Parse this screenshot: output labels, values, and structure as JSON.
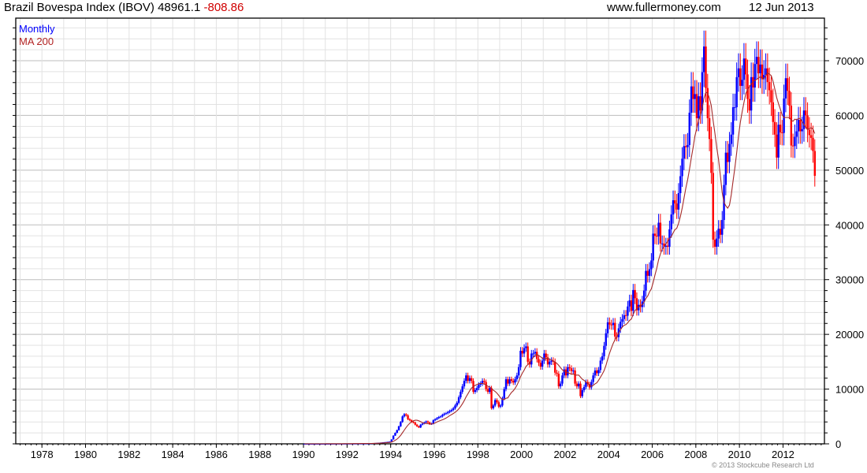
{
  "header": {
    "title": "Brazil Bovespa Index (IBOV) 48961.1",
    "change": "-808.86",
    "site": "www.fullermoney.com",
    "date": "12 Jun 2013"
  },
  "footer": {
    "copyright": "© 2013 Stockcube Research Ltd"
  },
  "colors": {
    "up": "#0000ff",
    "down": "#ff0000",
    "ma": "#a52a2a",
    "grid": "#e2e2e2",
    "grid_major": "#bdbdbd"
  },
  "chart_data": {
    "type": "bar",
    "subtype": "ohlc-monthly",
    "title": "Brazil Bovespa Index (IBOV)",
    "legend": [
      "Monthly",
      "MA 200"
    ],
    "legend_position": "top-left",
    "x_ticks": [
      "1978",
      "1980",
      "1982",
      "1984",
      "1986",
      "1988",
      "1990",
      "1992",
      "1994",
      "1996",
      "1998",
      "2000",
      "2002",
      "2004",
      "2006",
      "2008",
      "2010",
      "2012"
    ],
    "y_ticks": [
      "0",
      "10000",
      "20000",
      "30000",
      "40000",
      "50000",
      "60000",
      "70000"
    ],
    "xlim": [
      1976.8,
      2013.9
    ],
    "ylim": [
      0,
      70000
    ],
    "y_axis_side": "right",
    "grid": true,
    "start": "1990-01",
    "ma_period_months": 10,
    "closes": [
      5,
      5,
      5,
      6,
      6,
      6,
      7,
      7,
      7,
      8,
      8,
      9,
      10,
      12,
      15,
      18,
      20,
      22,
      25,
      28,
      30,
      32,
      35,
      40,
      42,
      45,
      50,
      55,
      60,
      60,
      65,
      70,
      70,
      75,
      80,
      90,
      100,
      110,
      130,
      150,
      170,
      200,
      230,
      260,
      300,
      330,
      370,
      420,
      800,
      1500,
      2000,
      2500,
      3200,
      4000,
      5000,
      5400,
      5200,
      4500,
      4300,
      4000,
      3900,
      3500,
      3200,
      3000,
      3500,
      3700,
      3900,
      4100,
      3900,
      3600,
      3700,
      4300,
      4500,
      4700,
      4900,
      5000,
      5300,
      5500,
      5600,
      5800,
      6000,
      6200,
      6500,
      7000,
      7500,
      8500,
      9500,
      10500,
      11500,
      12500,
      11500,
      12000,
      11500,
      9500,
      9800,
      10200,
      10800,
      11000,
      11500,
      11300,
      10000,
      9500,
      10200,
      6500,
      7000,
      8000,
      7600,
      6800,
      7000,
      8300,
      10000,
      11800,
      11000,
      11800,
      11500,
      11200,
      11800,
      12500,
      14000,
      17000,
      16500,
      17500,
      17800,
      15000,
      14500,
      16500,
      16500,
      16800,
      15500,
      14800,
      14100,
      15200,
      16500,
      15800,
      14500,
      15000,
      15200,
      15000,
      13000,
      12800,
      10500,
      11000,
      12500,
      13600,
      12500,
      14000,
      13800,
      13300,
      13400,
      11000,
      10500,
      11000,
      8700,
      9800,
      10400,
      11300,
      10900,
      10300,
      11300,
      12500,
      13400,
      12900,
      13500,
      15200,
      16000,
      17900,
      20200,
      22200,
      21800,
      21700,
      22100,
      19600,
      19500,
      21100,
      22300,
      22800,
      23500,
      23400,
      25100,
      26200,
      24300,
      28100,
      26600,
      24400,
      25400,
      25000,
      26000,
      28000,
      31600,
      30700,
      31900,
      33500,
      38400,
      38000,
      37900,
      40400,
      36600,
      36600,
      36000,
      36200,
      36000,
      39200,
      41900,
      44500,
      43900,
      42800,
      45800,
      48900,
      52100,
      54400,
      54200,
      54600,
      60500,
      65300,
      63000,
      63900,
      59500,
      63500,
      60900,
      67900,
      72600,
      65000,
      59500,
      55700,
      49500,
      37300,
      36000,
      37500,
      39300,
      38200,
      40900,
      47300,
      53200,
      51500,
      54800,
      56500,
      61500,
      61500,
      67000,
      68600,
      65400,
      66500,
      70400,
      67500,
      63000,
      60900,
      67000,
      65100,
      69400,
      70700,
      67700,
      69300,
      66600,
      67400,
      68600,
      66100,
      64600,
      62400,
      58800,
      56500,
      52300,
      58300,
      56900,
      56800,
      63100,
      66800,
      64500,
      61800,
      54500,
      54400,
      56100,
      57100,
      59200,
      57100,
      57500,
      60900,
      60000,
      57400,
      56400,
      55900,
      53500,
      48961
    ]
  }
}
